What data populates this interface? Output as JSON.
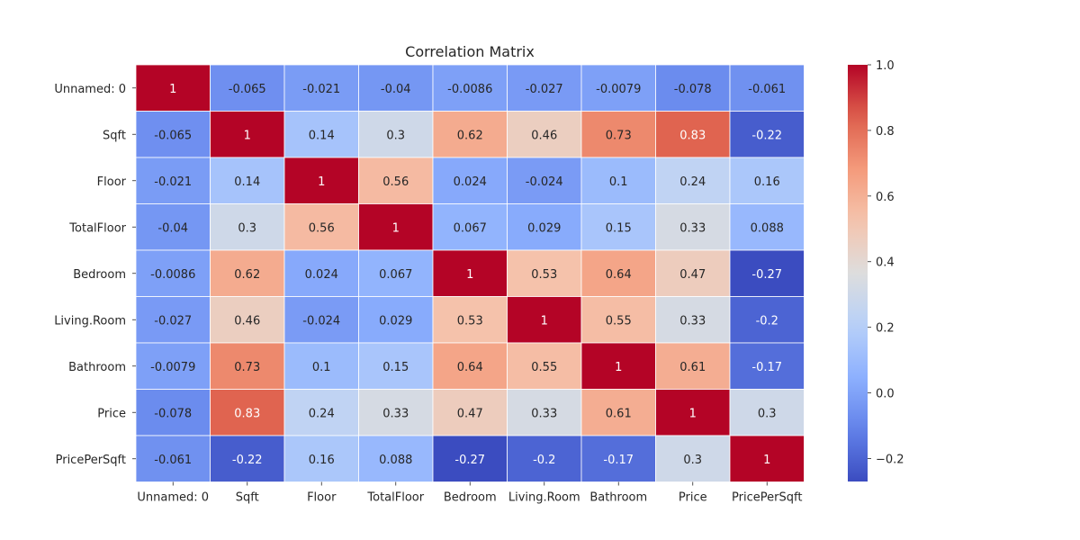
{
  "chart_data": {
    "type": "heatmap",
    "title": "Correlation Matrix",
    "xlabel": "",
    "ylabel": "",
    "x_categories": [
      "Unnamed: 0",
      "Sqft",
      "Floor",
      "TotalFloor",
      "Bedroom",
      "Living.Room",
      "Bathroom",
      "Price",
      "PricePerSqft"
    ],
    "y_categories": [
      "Unnamed: 0",
      "Sqft",
      "Floor",
      "TotalFloor",
      "Bedroom",
      "Living.Room",
      "Bathroom",
      "Price",
      "PricePerSqft"
    ],
    "values": [
      [
        1,
        -0.065,
        -0.021,
        -0.04,
        -0.0086,
        -0.027,
        -0.0079,
        -0.078,
        -0.061
      ],
      [
        -0.065,
        1,
        0.14,
        0.3,
        0.62,
        0.46,
        0.73,
        0.83,
        -0.22
      ],
      [
        -0.021,
        0.14,
        1,
        0.56,
        0.024,
        -0.024,
        0.1,
        0.24,
        0.16
      ],
      [
        -0.04,
        0.3,
        0.56,
        1,
        0.067,
        0.029,
        0.15,
        0.33,
        0.088
      ],
      [
        -0.0086,
        0.62,
        0.024,
        0.067,
        1,
        0.53,
        0.64,
        0.47,
        -0.27
      ],
      [
        -0.027,
        0.46,
        -0.024,
        0.029,
        0.53,
        1,
        0.55,
        0.33,
        -0.2
      ],
      [
        -0.0079,
        0.73,
        0.1,
        0.15,
        0.64,
        0.55,
        1,
        0.61,
        -0.17
      ],
      [
        -0.078,
        0.83,
        0.24,
        0.33,
        0.47,
        0.33,
        0.61,
        1,
        0.3
      ],
      [
        -0.061,
        -0.22,
        0.16,
        0.088,
        -0.27,
        -0.2,
        -0.17,
        0.3,
        1
      ]
    ],
    "colormap": "coolwarm",
    "vmin": -0.27,
    "vmax": 1,
    "colorbar_ticks": [
      -0.2,
      0.0,
      0.2,
      0.4,
      0.6,
      0.8,
      1.0
    ],
    "annotate": true,
    "grid": false,
    "cell_border_color": "#ffffff",
    "legend": "colorbar-right"
  }
}
